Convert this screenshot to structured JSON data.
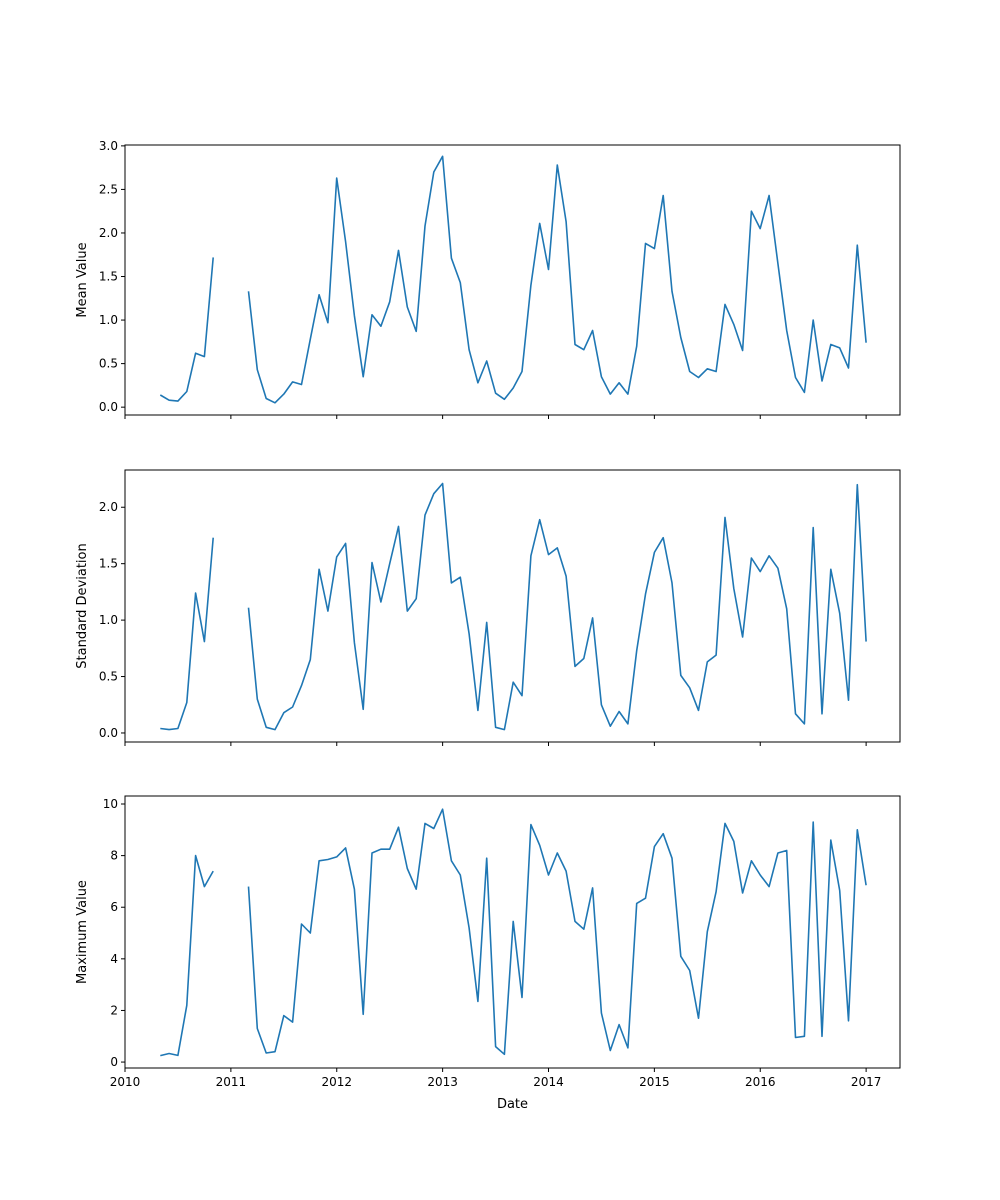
{
  "chart_data": [
    {
      "type": "line",
      "ylabel": "Mean Value",
      "xlabel": "",
      "ylim": [
        -0.09,
        3.01
      ],
      "yticks": [
        "0.0",
        "0.5",
        "1.0",
        "1.5",
        "2.0",
        "2.5",
        "3.0"
      ],
      "ytick_values": [
        0,
        0.5,
        1,
        1.5,
        2,
        2.5,
        3
      ],
      "show_xtick_labels": false,
      "values": [
        0.14,
        0.08,
        0.07,
        0.18,
        0.62,
        0.58,
        1.72,
        null,
        null,
        null,
        1.33,
        0.43,
        0.1,
        0.05,
        0.15,
        0.29,
        0.26,
        0.78,
        1.29,
        0.97,
        2.63,
        1.9,
        1.05,
        0.35,
        1.06,
        0.93,
        1.21,
        1.8,
        1.15,
        0.87,
        2.08,
        2.7,
        2.88,
        1.71,
        1.43,
        0.66,
        0.28,
        0.53,
        0.16,
        0.09,
        0.22,
        0.41,
        1.4,
        2.11,
        1.58,
        2.78,
        2.13,
        0.72,
        0.66,
        0.88,
        0.35,
        0.15,
        0.28,
        0.15,
        0.7,
        1.88,
        1.82,
        2.43,
        1.33,
        0.8,
        0.41,
        0.34,
        0.44,
        0.41,
        1.18,
        0.95,
        0.65,
        2.25,
        2.05,
        2.43,
        1.65,
        0.88,
        0.34,
        0.17,
        1.0,
        0.3,
        0.72,
        0.68,
        0.45,
        1.86,
        0.74
      ]
    },
    {
      "type": "line",
      "ylabel": "Standard Deviation",
      "xlabel": "",
      "ylim": [
        -0.08,
        2.33
      ],
      "yticks": [
        "0.0",
        "0.5",
        "1.0",
        "1.5",
        "2.0"
      ],
      "ytick_values": [
        0,
        0.5,
        1,
        1.5,
        2
      ],
      "show_xtick_labels": false,
      "values": [
        0.04,
        0.03,
        0.04,
        0.27,
        1.24,
        0.81,
        1.73,
        null,
        null,
        null,
        1.11,
        0.3,
        0.05,
        0.03,
        0.18,
        0.23,
        0.42,
        0.65,
        1.45,
        1.08,
        1.56,
        1.68,
        0.8,
        0.21,
        1.51,
        1.16,
        1.5,
        1.83,
        1.08,
        1.19,
        1.93,
        2.12,
        2.21,
        1.33,
        1.38,
        0.88,
        0.2,
        0.98,
        0.05,
        0.03,
        0.45,
        0.33,
        1.57,
        1.89,
        1.58,
        1.64,
        1.39,
        0.59,
        0.66,
        1.02,
        0.25,
        0.06,
        0.19,
        0.08,
        0.73,
        1.23,
        1.6,
        1.73,
        1.33,
        0.51,
        0.4,
        0.2,
        0.63,
        0.69,
        1.91,
        1.28,
        0.85,
        1.55,
        1.43,
        1.57,
        1.46,
        1.1,
        0.17,
        0.08,
        1.82,
        0.17,
        1.45,
        1.06,
        0.29,
        2.2,
        0.81
      ]
    },
    {
      "type": "line",
      "ylabel": "Maximum Value",
      "xlabel": "Date",
      "ylim": [
        -0.23,
        10.31
      ],
      "yticks": [
        "0",
        "2",
        "4",
        "6",
        "8",
        "10"
      ],
      "ytick_values": [
        0,
        2,
        4,
        6,
        8,
        10
      ],
      "show_xtick_labels": true,
      "values": [
        0.25,
        0.33,
        0.26,
        2.2,
        8.0,
        6.8,
        7.4,
        null,
        null,
        null,
        6.8,
        1.3,
        0.35,
        0.4,
        1.8,
        1.55,
        5.35,
        5.0,
        7.8,
        7.85,
        7.95,
        8.3,
        6.7,
        1.85,
        8.1,
        8.25,
        8.25,
        9.1,
        7.5,
        6.7,
        9.25,
        9.05,
        9.8,
        7.8,
        7.25,
        5.2,
        2.35,
        7.9,
        0.6,
        0.3,
        5.45,
        2.5,
        9.2,
        8.4,
        7.25,
        8.1,
        7.4,
        5.45,
        5.15,
        6.75,
        1.9,
        0.45,
        1.45,
        0.55,
        6.15,
        6.35,
        8.35,
        8.85,
        7.9,
        4.1,
        3.55,
        1.7,
        5.05,
        6.6,
        9.25,
        8.55,
        6.55,
        7.8,
        7.25,
        6.8,
        8.1,
        8.2,
        0.95,
        1.0,
        9.3,
        1.0,
        8.6,
        6.65,
        1.6,
        9.0,
        6.85
      ]
    }
  ],
  "x_axis": {
    "start": "2010-05",
    "frequency": "monthly",
    "xlim_years": [
      2010.0,
      2017.32
    ],
    "ticks": [
      "2010",
      "2011",
      "2012",
      "2013",
      "2014",
      "2015",
      "2016",
      "2017"
    ],
    "tick_values": [
      2010,
      2011,
      2012,
      2013,
      2014,
      2015,
      2016,
      2017
    ]
  },
  "colors": {
    "line": "#1f77b4"
  }
}
